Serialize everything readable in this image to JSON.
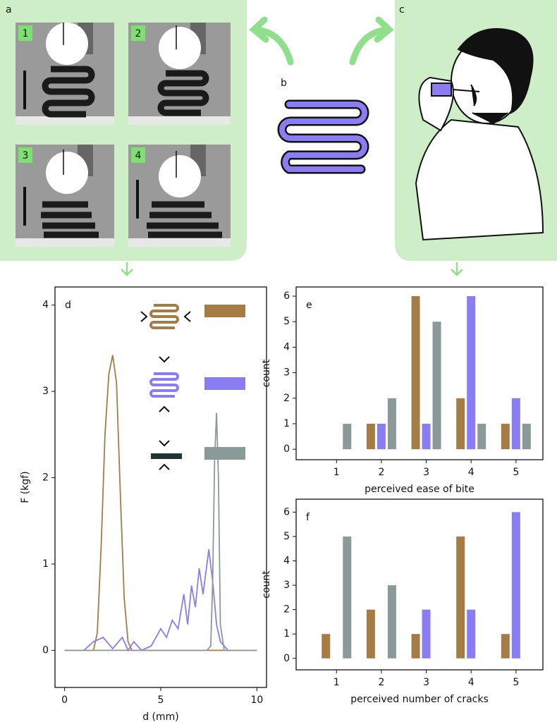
{
  "panels": {
    "a": "a",
    "b": "b",
    "c": "c",
    "frames": [
      "1",
      "2",
      "3",
      "4"
    ]
  },
  "chart_data": [
    {
      "type": "line",
      "label": "d",
      "xlabel": "d (mm)",
      "ylabel": "F (kgf)",
      "xlim": [
        -0.5,
        10.5
      ],
      "ylim": [
        -0.43,
        4.21
      ],
      "xticks": [
        0,
        5,
        10
      ],
      "yticks": [
        0,
        1,
        2,
        3,
        4
      ],
      "series": [
        {
          "color": "#a67c45",
          "x": [
            0,
            1.5,
            1.7,
            1.9,
            2.1,
            2.3,
            2.5,
            2.7,
            2.9,
            3.1,
            3.3,
            3.5,
            10
          ],
          "values": [
            0,
            0,
            0.2,
            1.2,
            2.5,
            3.2,
            3.42,
            3.1,
            1.8,
            0.6,
            0.1,
            0,
            0
          ]
        },
        {
          "color": "#8a7cf2",
          "x": [
            1,
            1.5,
            2,
            2.5,
            3,
            3.3,
            3.6,
            4,
            4.5,
            5,
            5.3,
            5.6,
            5.9,
            6.2,
            6.4,
            6.6,
            6.8,
            7.0,
            7.2,
            7.5,
            7.7,
            7.9,
            8.1,
            8.5
          ],
          "values": [
            0,
            0.1,
            0.15,
            0.02,
            0.15,
            0,
            0.1,
            0,
            0.05,
            0.25,
            0.15,
            0.35,
            0.25,
            0.65,
            0.3,
            0.75,
            0.5,
            0.95,
            0.65,
            1.17,
            0.8,
            0.3,
            0.1,
            0
          ]
        },
        {
          "color": "#8a9a98",
          "x": [
            0,
            7.4,
            7.6,
            7.7,
            7.8,
            7.9,
            8.0,
            8.1,
            8.3,
            10
          ],
          "values": [
            0,
            0,
            0.05,
            0.8,
            2.2,
            2.75,
            2.0,
            0.3,
            0,
            0
          ]
        }
      ]
    },
    {
      "type": "bar",
      "label": "e",
      "xlabel": "perceived ease of bite",
      "ylabel": "count",
      "x": [
        1,
        2,
        3,
        4,
        5
      ],
      "xlim": [
        0.1,
        5.6
      ],
      "ylim": [
        -0.41,
        6.36
      ],
      "xticks": [
        1,
        2,
        3,
        4,
        5
      ],
      "yticks": [
        0,
        1,
        2,
        3,
        4,
        5,
        6
      ],
      "series": [
        {
          "color": "#a67c45",
          "values": [
            0,
            1,
            6,
            2,
            1
          ]
        },
        {
          "color": "#8a7cf2",
          "values": [
            0,
            1,
            1,
            6,
            2
          ]
        },
        {
          "color": "#8a9a98",
          "values": [
            1,
            2,
            5,
            1,
            1
          ]
        }
      ]
    },
    {
      "type": "bar",
      "label": "f",
      "xlabel": "perceived number of cracks",
      "ylabel": "count",
      "x": [
        1,
        2,
        3,
        4,
        5
      ],
      "xlim": [
        0.1,
        5.6
      ],
      "ylim": [
        -0.47,
        6.53
      ],
      "xticks": [
        1,
        2,
        3,
        4,
        5
      ],
      "yticks": [
        0,
        1,
        2,
        3,
        4,
        5,
        6
      ],
      "series": [
        {
          "color": "#a67c45",
          "values": [
            1,
            2,
            1,
            5,
            1
          ]
        },
        {
          "color": "#8a7cf2",
          "values": [
            0,
            0,
            2,
            2,
            6
          ]
        },
        {
          "color": "#8a9a98",
          "values": [
            5,
            3,
            0,
            0,
            0
          ]
        }
      ]
    }
  ]
}
